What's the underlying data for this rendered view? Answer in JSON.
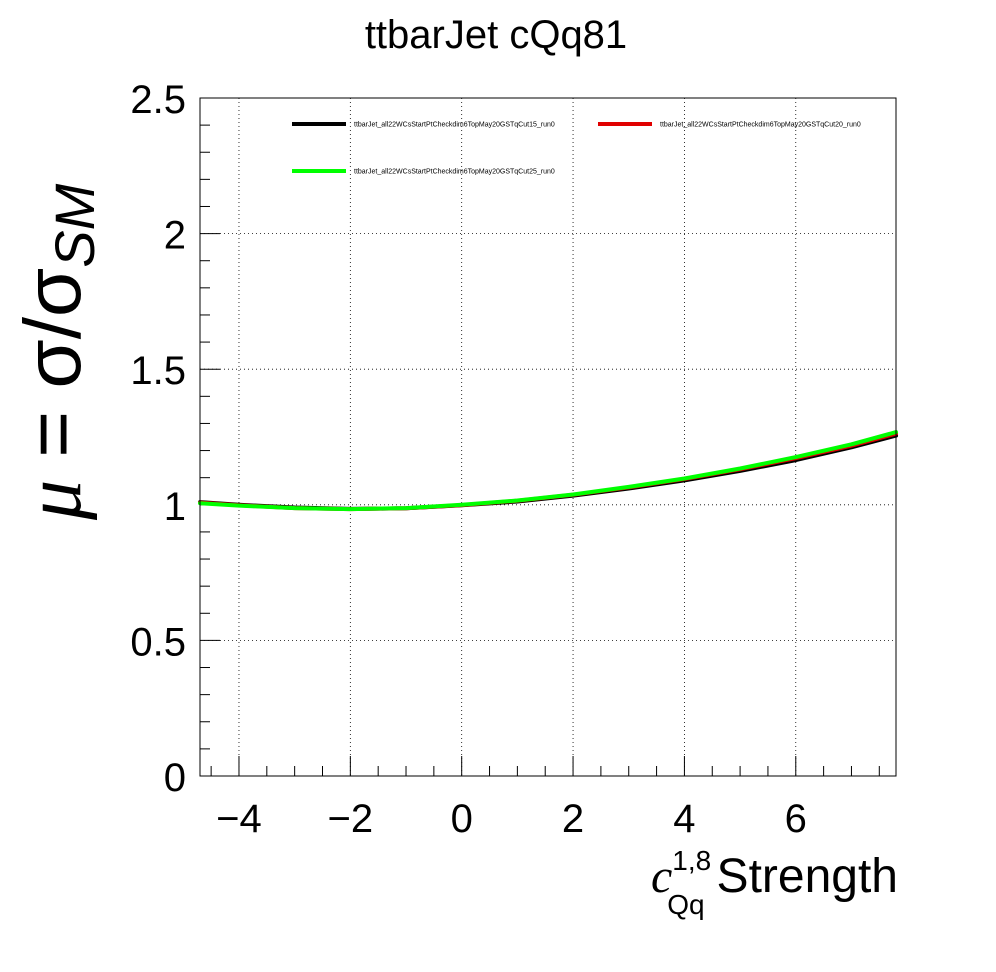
{
  "chart_data": {
    "type": "line",
    "title": "ttbarJet cQq81",
    "xlabel": {
      "var": "c",
      "sup": "1,8",
      "sub": "Qq",
      "text": "Strength"
    },
    "ylabel": {
      "mu": "μ",
      "rest": " = σ/σ",
      "sub": "SM"
    },
    "xlim": [
      -4.7,
      7.8
    ],
    "ylim": [
      0,
      2.5
    ],
    "x_ticks": [
      -4,
      -2,
      0,
      2,
      4,
      6
    ],
    "x_tick_labels": [
      "−4",
      "−2",
      "0",
      "2",
      "4",
      "6"
    ],
    "y_ticks": [
      0,
      0.5,
      1,
      1.5,
      2,
      2.5
    ],
    "y_tick_labels": [
      "0",
      "0.5",
      "1",
      "1.5",
      "2",
      "2.5"
    ],
    "grid": true,
    "legend_position": "top",
    "series": [
      {
        "name": "ttbarJet_all22WCsStartPtCheckdim6TopMay20GSTqCut15_run0",
        "color": "#000000",
        "x": [
          -4.7,
          -4,
          -3,
          -2,
          -1,
          0,
          1,
          2,
          3,
          4,
          5,
          6,
          7,
          7.8
        ],
        "y": [
          1.01,
          1.0,
          0.99,
          0.985,
          0.987,
          0.998,
          1.012,
          1.034,
          1.06,
          1.09,
          1.125,
          1.165,
          1.212,
          1.255
        ]
      },
      {
        "name": "ttbarJet_all22WCsStartPtCheckdim6TopMay20GSTqCut20_run0",
        "color": "#e00000",
        "x": [
          -4.7,
          -4,
          -3,
          -2,
          -1,
          0,
          1,
          2,
          3,
          4,
          5,
          6,
          7,
          7.8
        ],
        "y": [
          1.008,
          0.998,
          0.988,
          0.984,
          0.987,
          0.999,
          1.015,
          1.037,
          1.064,
          1.095,
          1.131,
          1.172,
          1.218,
          1.262
        ]
      },
      {
        "name": "ttbarJet_all22WCsStartPtCheckdim6TopMay20GSTqCut25_run0",
        "color": "#00ff00",
        "x": [
          -4.7,
          -4,
          -3,
          -2,
          -1,
          0,
          1,
          2,
          3,
          4,
          5,
          6,
          7,
          7.8
        ],
        "y": [
          1.006,
          0.997,
          0.988,
          0.984,
          0.988,
          1.0,
          1.016,
          1.038,
          1.066,
          1.097,
          1.134,
          1.176,
          1.223,
          1.268
        ]
      }
    ]
  }
}
